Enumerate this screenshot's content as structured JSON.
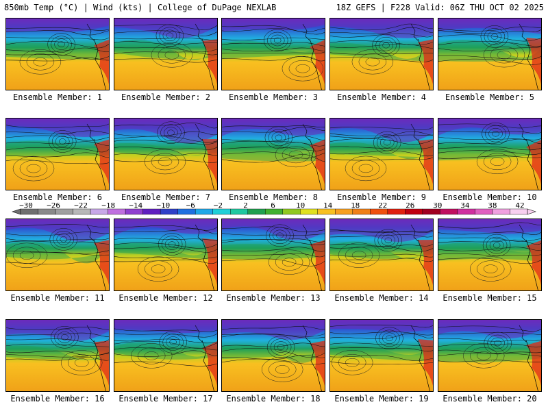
{
  "header": {
    "left": "850mb Temp (°C) | Wind (kts) | College of DuPage NEXLAB",
    "right": "18Z GEFS | F228 Valid: 06Z THU OCT 02 2025"
  },
  "members": [
    "Ensemble Member: 1",
    "Ensemble Member: 2",
    "Ensemble Member: 3",
    "Ensemble Member: 4",
    "Ensemble Member: 5",
    "Ensemble Member: 6",
    "Ensemble Member: 7",
    "Ensemble Member: 8",
    "Ensemble Member: 9",
    "Ensemble Member: 10",
    "Ensemble Member: 11",
    "Ensemble Member: 12",
    "Ensemble Member: 13",
    "Ensemble Member: 14",
    "Ensemble Member: 15",
    "Ensemble Member: 16",
    "Ensemble Member: 17",
    "Ensemble Member: 18",
    "Ensemble Member: 19",
    "Ensemble Member: 20"
  ],
  "colorbar": {
    "labels": [
      "−30",
      "−26",
      "−22",
      "−18",
      "−14",
      "−10",
      "−6",
      "−2",
      "2",
      "6",
      "10",
      "14",
      "18",
      "22",
      "26",
      "30",
      "34",
      "38",
      "42"
    ],
    "colors": [
      "#707070",
      "#8a8a8a",
      "#a0a0a0",
      "#b8b8b8",
      "#c8a8e8",
      "#c070e0",
      "#9040d0",
      "#6020c0",
      "#3040c8",
      "#2070e0",
      "#20a8e8",
      "#20d0d8",
      "#20c8a0",
      "#20a050",
      "#40b030",
      "#90c820",
      "#e0e020",
      "#f8c020",
      "#f8a020",
      "#f08018",
      "#f05010",
      "#e02010",
      "#c00010",
      "#a00020",
      "#c01060",
      "#d030a0",
      "#e060c0",
      "#f0a0e0",
      "#f8d0f0"
    ]
  },
  "colors": {
    "cold": "#8040d0",
    "cool": "#20b8e0",
    "mild": "#30a050",
    "warm": "#f0a020",
    "hot": "#e02010"
  }
}
